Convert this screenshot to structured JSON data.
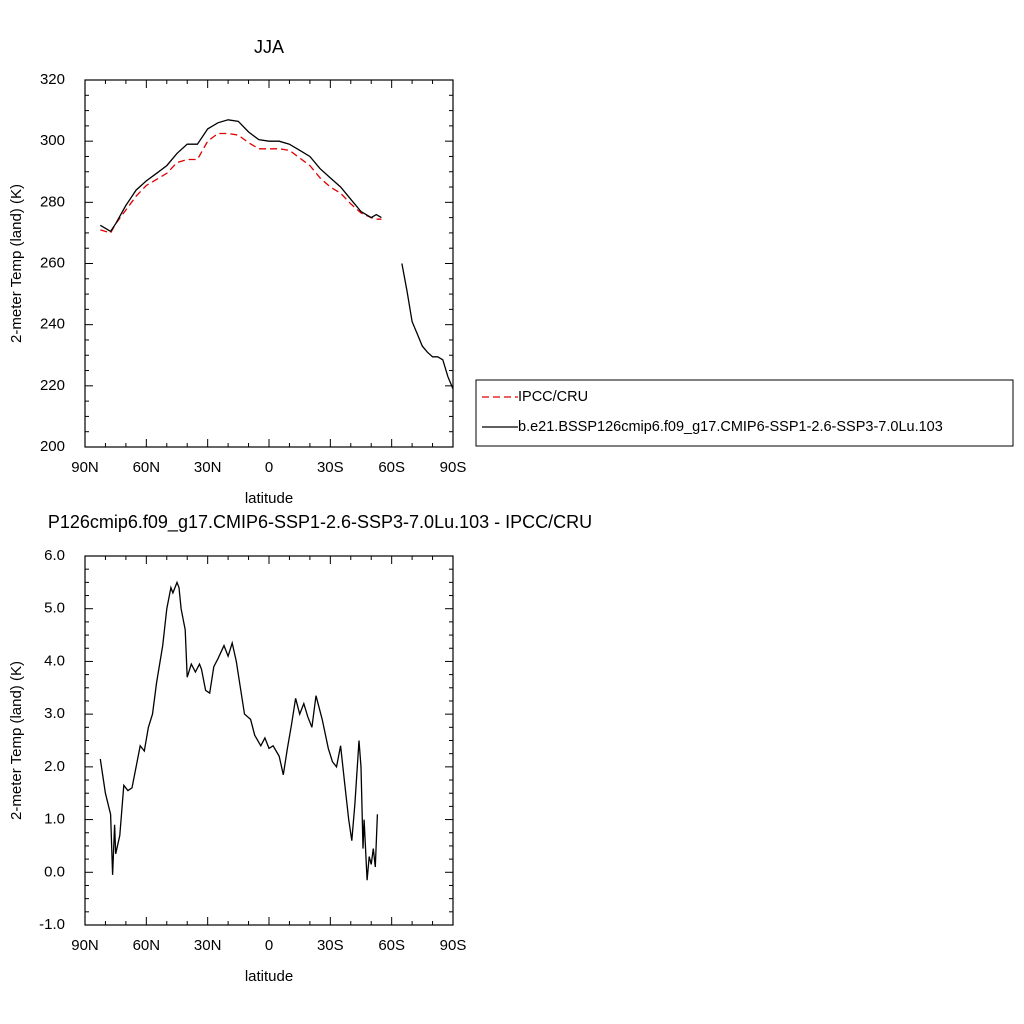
{
  "chart_data": [
    {
      "type": "line",
      "title": "JJA",
      "xlabel": "latitude",
      "ylabel": "2-meter Temp (land) (K)",
      "x": [
        82.5,
        80,
        77.5,
        75,
        70,
        65,
        60,
        55,
        50,
        45,
        40,
        35,
        30,
        25,
        20,
        15,
        10,
        5,
        0,
        -5,
        -10,
        -15,
        -20,
        -25,
        -30,
        -35,
        -40,
        -45,
        -50,
        -52.5,
        -55,
        -60,
        -65,
        -67.5,
        -70,
        -72.5,
        -75,
        -77.5,
        -80,
        -82.5,
        -85,
        -87.5,
        -90
      ],
      "series": [
        {
          "name": "IPCC/CRU",
          "color": "#e00000",
          "linestyle": "dashed",
          "values": [
            271,
            270.5,
            270,
            273,
            277.5,
            282,
            285.5,
            287.5,
            289.5,
            293,
            294,
            294,
            300,
            302.5,
            302.5,
            302,
            299.5,
            297.5,
            297.5,
            297.5,
            297,
            294.5,
            292,
            288,
            285,
            283,
            279.5,
            276.5,
            275,
            274.5,
            274.5,
            null,
            null,
            null,
            null,
            null,
            null,
            null,
            null,
            null,
            null,
            null,
            null
          ]
        },
        {
          "name": "b.e21.BSSP126cmip6.f09_g17.CMIP6-SSP1-2.6-SSP3-7.0Lu.103",
          "color": "#000000",
          "linestyle": "solid",
          "values": [
            272.5,
            271.5,
            270.5,
            273,
            279,
            284,
            287,
            289.5,
            292,
            296,
            299,
            299,
            304,
            306,
            307,
            306.5,
            303,
            300.5,
            300,
            300,
            299,
            297,
            295,
            291,
            288,
            285,
            281,
            277,
            275,
            276,
            275,
            null,
            260,
            251,
            241,
            237,
            233,
            231,
            229.5,
            229.5,
            228.5,
            223,
            219
          ]
        }
      ],
      "xlim": [
        90,
        -90
      ],
      "ylim": [
        200,
        320
      ],
      "xticks": [
        {
          "value": 90,
          "label": "90N"
        },
        {
          "value": 60,
          "label": "60N"
        },
        {
          "value": 30,
          "label": "30N"
        },
        0,
        {
          "value": -30,
          "label": "30S"
        },
        {
          "value": -60,
          "label": "60S"
        },
        {
          "value": -90,
          "label": "90S"
        }
      ],
      "yticks": [
        200,
        220,
        240,
        260,
        280,
        300,
        320
      ],
      "legend": "right"
    },
    {
      "type": "line",
      "title": "P126cmip6.f09_g17.CMIP6-SSP1-2.6-SSP3-7.0Lu.103 - IPCC/CRU",
      "xlabel": "latitude",
      "ylabel": "2-meter Temp (land) (K)",
      "x": [
        82.5,
        80,
        77.5,
        76.5,
        75.5,
        75,
        73,
        71,
        69,
        67,
        65,
        63,
        61,
        59,
        57,
        55,
        52,
        50,
        48,
        47,
        45,
        44,
        43,
        41,
        40,
        38,
        36,
        34,
        33,
        31,
        29,
        27,
        25,
        22,
        20,
        18,
        16,
        14,
        12,
        9,
        7,
        4,
        2,
        0,
        -2,
        -5,
        -7,
        -9,
        -11,
        -13,
        -15,
        -17,
        -19,
        -21,
        -23,
        -26,
        -29,
        -31,
        -33,
        -35,
        -37,
        -39,
        -40.5,
        -42,
        -44,
        -45,
        -46,
        -46.5,
        -48,
        -49,
        -50,
        -51,
        -52,
        -53
      ],
      "values": [
        2.15,
        1.5,
        1.1,
        -0.05,
        0.9,
        0.35,
        0.7,
        1.65,
        1.55,
        1.6,
        2.0,
        2.4,
        2.3,
        2.75,
        3.0,
        3.6,
        4.3,
        5.0,
        5.4,
        5.3,
        5.5,
        5.4,
        5.0,
        4.6,
        3.7,
        3.95,
        3.8,
        3.95,
        3.85,
        3.45,
        3.4,
        3.9,
        4.05,
        4.3,
        4.1,
        4.35,
        4.0,
        3.5,
        3.0,
        2.9,
        2.6,
        2.4,
        2.55,
        2.35,
        2.4,
        2.2,
        1.85,
        2.35,
        2.8,
        3.3,
        3.0,
        3.2,
        2.95,
        2.75,
        3.35,
        2.9,
        2.35,
        2.1,
        2.0,
        2.4,
        1.7,
        1.0,
        0.6,
        1.3,
        2.5,
        2.0,
        0.45,
        1.0,
        -0.15,
        0.3,
        0.15,
        0.45,
        0.1,
        1.1
      ],
      "color": "#000000",
      "xlim": [
        90,
        -90
      ],
      "ylim": [
        -1,
        6
      ],
      "xticks": [
        {
          "value": 90,
          "label": "90N"
        },
        {
          "value": 60,
          "label": "60N"
        },
        {
          "value": 30,
          "label": "30N"
        },
        0,
        {
          "value": -30,
          "label": "30S"
        },
        {
          "value": -60,
          "label": "60S"
        },
        {
          "value": -90,
          "label": "90S"
        }
      ],
      "yticks": [
        {
          "value": -1,
          "label": "-1.0"
        },
        {
          "value": 0,
          "label": "0.0"
        },
        {
          "value": 1,
          "label": "1.0"
        },
        {
          "value": 2,
          "label": "2.0"
        },
        {
          "value": 3,
          "label": "3.0"
        },
        {
          "value": 4,
          "label": "4.0"
        },
        {
          "value": 5,
          "label": "5.0"
        },
        {
          "value": 6,
          "label": "6.0"
        }
      ]
    }
  ]
}
